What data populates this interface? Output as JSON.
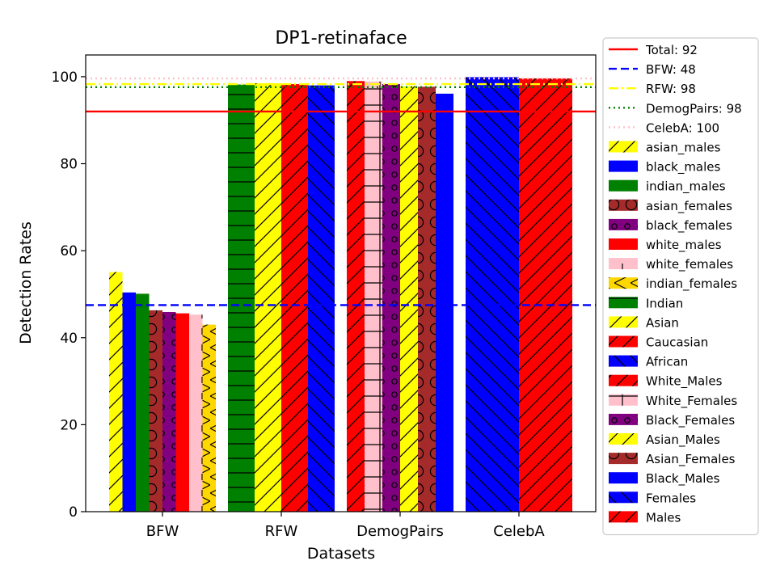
{
  "chart_data": {
    "type": "bar",
    "title": "DP1-retinaface",
    "xlabel": "Datasets",
    "ylabel": "Detection Rates",
    "ylim": [
      0,
      105
    ],
    "yticks": [
      0,
      20,
      40,
      60,
      80,
      100
    ],
    "categories": [
      "BFW",
      "RFW",
      "DemogPairs",
      "CelebA"
    ],
    "grid": false,
    "legend_position": "outside-right",
    "reference_lines": [
      {
        "label": "Total: 92",
        "value": 92,
        "color": "#ff0000",
        "style": "solid"
      },
      {
        "label": "BFW: 48",
        "value": 47.5,
        "color": "#0000ff",
        "style": "dashed"
      },
      {
        "label": "RFW: 98",
        "value": 98.3,
        "color": "#ffff00",
        "style": "dashdot"
      },
      {
        "label": "DemogPairs: 98",
        "value": 97.6,
        "color": "#008000",
        "style": "dotted"
      },
      {
        "label": "CelebA: 100",
        "value": 99.6,
        "color": "#ffc0cb",
        "style": "dotted"
      }
    ],
    "series": [
      {
        "name": "asian_males",
        "color": "#ffff00",
        "hatch": "fslash",
        "values": [
          {
            "category": "BFW",
            "value": 55.1
          }
        ]
      },
      {
        "name": "black_males",
        "color": "#0000ff",
        "hatch": "none",
        "values": [
          {
            "category": "BFW",
            "value": 50.4
          }
        ]
      },
      {
        "name": "indian_males",
        "color": "#008000",
        "hatch": "none",
        "values": [
          {
            "category": "BFW",
            "value": 50.1
          }
        ]
      },
      {
        "name": "asian_females",
        "color": "#a52a2a",
        "hatch": "bigO",
        "values": [
          {
            "category": "BFW",
            "value": 46.3
          }
        ]
      },
      {
        "name": "black_females",
        "color": "#800080",
        "hatch": "smallo",
        "values": [
          {
            "category": "BFW",
            "value": 45.9
          }
        ]
      },
      {
        "name": "white_males",
        "color": "#ff0000",
        "hatch": "none",
        "values": [
          {
            "category": "BFW",
            "value": 45.6
          }
        ]
      },
      {
        "name": "white_females",
        "color": "#ffc0cb",
        "hatch": "vline",
        "values": [
          {
            "category": "BFW",
            "value": 45.3
          }
        ]
      },
      {
        "name": "indian_females",
        "color": "#ffd700",
        "hatch": "x",
        "values": [
          {
            "category": "BFW",
            "value": 43.0
          }
        ]
      },
      {
        "name": "Indian",
        "color": "#008000",
        "hatch": "hline",
        "values": [
          {
            "category": "RFW",
            "value": 98.2
          }
        ]
      },
      {
        "name": "Asian",
        "color": "#ffff00",
        "hatch": "fslash",
        "values": [
          {
            "category": "RFW",
            "value": 98.5
          }
        ]
      },
      {
        "name": "Caucasian",
        "color": "#ff0000",
        "hatch": "fslash",
        "values": [
          {
            "category": "RFW",
            "value": 98.3
          }
        ]
      },
      {
        "name": "African",
        "color": "#0000ff",
        "hatch": "bslash",
        "values": [
          {
            "category": "RFW",
            "value": 98.0
          }
        ]
      },
      {
        "name": "White_Males",
        "color": "#ff0000",
        "hatch": "fslash",
        "values": [
          {
            "category": "DemogPairs",
            "value": 99.0
          }
        ]
      },
      {
        "name": "White_Females",
        "color": "#ffc0cb",
        "hatch": "plus",
        "values": [
          {
            "category": "DemogPairs",
            "value": 98.9
          }
        ]
      },
      {
        "name": "Black_Females",
        "color": "#800080",
        "hatch": "smallo",
        "values": [
          {
            "category": "DemogPairs",
            "value": 98.3
          }
        ]
      },
      {
        "name": "Asian_Males",
        "color": "#ffff00",
        "hatch": "fslash",
        "values": [
          {
            "category": "DemogPairs",
            "value": 97.8
          }
        ]
      },
      {
        "name": "Asian_Females",
        "color": "#a52a2a",
        "hatch": "bigO",
        "values": [
          {
            "category": "DemogPairs",
            "value": 97.7
          }
        ]
      },
      {
        "name": "Black_Males",
        "color": "#0000ff",
        "hatch": "none",
        "values": [
          {
            "category": "DemogPairs",
            "value": 96.1
          }
        ]
      },
      {
        "name": "Females",
        "color": "#0000ff",
        "hatch": "bslash",
        "values": [
          {
            "category": "CelebA",
            "value": 99.9
          }
        ]
      },
      {
        "name": "Males",
        "color": "#ff0000",
        "hatch": "fslash",
        "values": [
          {
            "category": "CelebA",
            "value": 99.6
          }
        ]
      }
    ]
  }
}
